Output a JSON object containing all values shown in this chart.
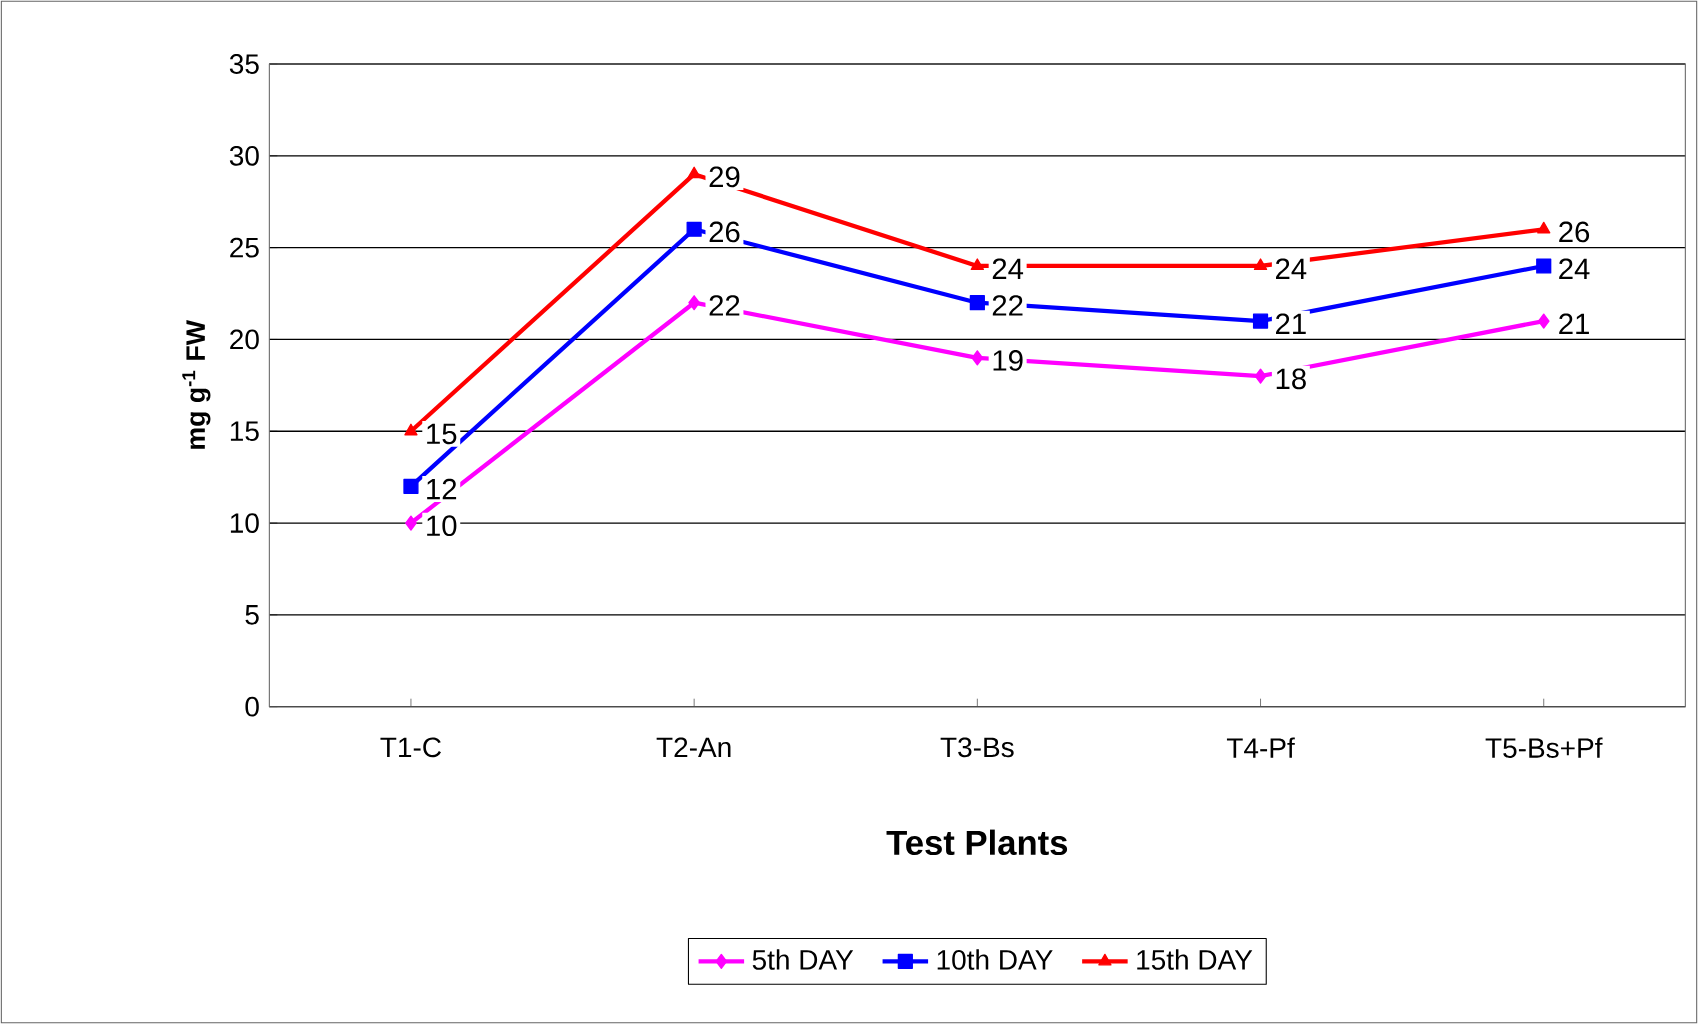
{
  "chart_data": {
    "type": "line",
    "xlabel": "Test Plants",
    "ylabel": "mg g$^{-1}$ FW",
    "categories": [
      "T1-C",
      "T2-An",
      "T3-Bs",
      "T4-Pf",
      "T5-Bs+Pf"
    ],
    "series": [
      {
        "name": "5th DAY",
        "color": "#ff00ff",
        "marker": "diamond",
        "values": [
          10,
          22,
          19,
          18,
          21
        ]
      },
      {
        "name": "10th DAY",
        "color": "#0000ff",
        "marker": "square",
        "values": [
          12,
          26,
          22,
          21,
          24
        ]
      },
      {
        "name": "15th DAY",
        "color": "#ff0000",
        "marker": "triangle",
        "values": [
          15,
          29,
          24,
          24,
          26
        ]
      }
    ],
    "ylim": [
      0,
      35
    ],
    "yticks": [
      0,
      5,
      10,
      15,
      20,
      25,
      30,
      35
    ],
    "grid": "y",
    "legend": "bottom",
    "data_labels": true,
    "line_style": "solid"
  }
}
